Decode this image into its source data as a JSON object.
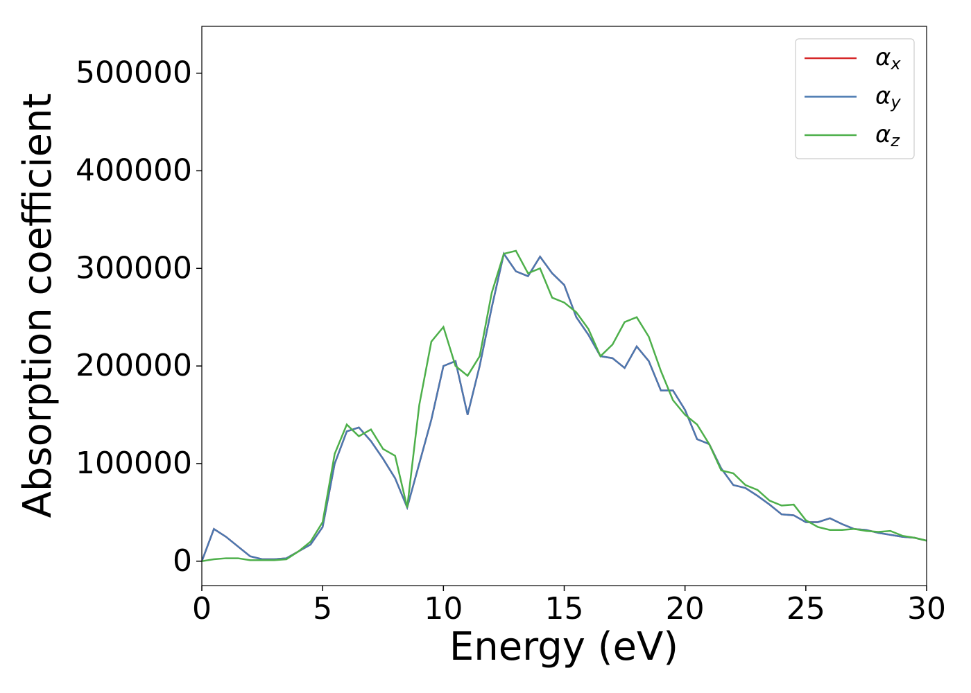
{
  "chart_data": {
    "type": "line",
    "xlabel": "Energy (eV)",
    "ylabel": "Absorption coefficient",
    "x": [
      0,
      0.5,
      1,
      1.5,
      2,
      2.5,
      3,
      3.5,
      4,
      4.5,
      5,
      5.5,
      6,
      6.5,
      7,
      7.5,
      8,
      8.5,
      9,
      9.5,
      10,
      10.5,
      11,
      11.5,
      12,
      12.5,
      13,
      13.5,
      14,
      14.5,
      15,
      15.5,
      16,
      16.5,
      17,
      17.5,
      18,
      18.5,
      19,
      19.5,
      20,
      20.5,
      21,
      21.5,
      22,
      22.5,
      23,
      23.5,
      24,
      24.5,
      25,
      25.5,
      26,
      26.5,
      27,
      27.5,
      28,
      28.5,
      29,
      29.5,
      30
    ],
    "series": [
      {
        "name": "αx",
        "color": "#d62728",
        "values": [
          0,
          33000,
          25000,
          15000,
          5000,
          2000,
          2000,
          3000,
          10000,
          17000,
          35000,
          100000,
          133000,
          137000,
          123000,
          105000,
          85000,
          55000,
          100000,
          145000,
          200000,
          205000,
          150000,
          200000,
          260000,
          315000,
          297000,
          292000,
          312000,
          295000,
          283000,
          250000,
          232000,
          210000,
          208000,
          198000,
          220000,
          205000,
          175000,
          175000,
          155000,
          125000,
          120000,
          95000,
          78000,
          75000,
          67000,
          58000,
          48000,
          47000,
          40000,
          40000,
          44000,
          38000,
          33000,
          32000,
          29000,
          27000,
          25000,
          24000,
          21000
        ]
      },
      {
        "name": "αy",
        "color": "#4a78b0",
        "values": [
          0,
          33000,
          25000,
          15000,
          5000,
          2000,
          2000,
          3000,
          10000,
          17000,
          35000,
          100000,
          133000,
          137000,
          123000,
          105000,
          85000,
          55000,
          100000,
          145000,
          200000,
          205000,
          150000,
          200000,
          260000,
          315000,
          297000,
          292000,
          312000,
          295000,
          283000,
          250000,
          232000,
          210000,
          208000,
          198000,
          220000,
          205000,
          175000,
          175000,
          155000,
          125000,
          120000,
          95000,
          78000,
          75000,
          67000,
          58000,
          48000,
          47000,
          40000,
          40000,
          44000,
          38000,
          33000,
          32000,
          29000,
          27000,
          25000,
          24000,
          21000
        ]
      },
      {
        "name": "αz",
        "color": "#4daf4a",
        "values": [
          0,
          2000,
          3000,
          3000,
          1000,
          1000,
          1000,
          2000,
          10000,
          20000,
          40000,
          110000,
          140000,
          128000,
          135000,
          115000,
          108000,
          55000,
          160000,
          225000,
          240000,
          200000,
          190000,
          210000,
          275000,
          315000,
          318000,
          295000,
          300000,
          270000,
          265000,
          255000,
          238000,
          210000,
          222000,
          245000,
          250000,
          230000,
          195000,
          165000,
          150000,
          140000,
          120000,
          93000,
          90000,
          78000,
          73000,
          62000,
          57000,
          58000,
          42000,
          35000,
          32000,
          32000,
          33000,
          31000,
          30000,
          31000,
          26000,
          24000,
          21000
        ]
      }
    ],
    "xlim": [
      0,
      30
    ],
    "xticks": [
      0,
      5,
      10,
      15,
      20,
      25,
      30
    ],
    "ylim": [
      -25000,
      548000
    ],
    "yticks": [
      0,
      100000,
      200000,
      300000,
      400000,
      500000
    ],
    "grid": false,
    "legend": "upper right"
  }
}
